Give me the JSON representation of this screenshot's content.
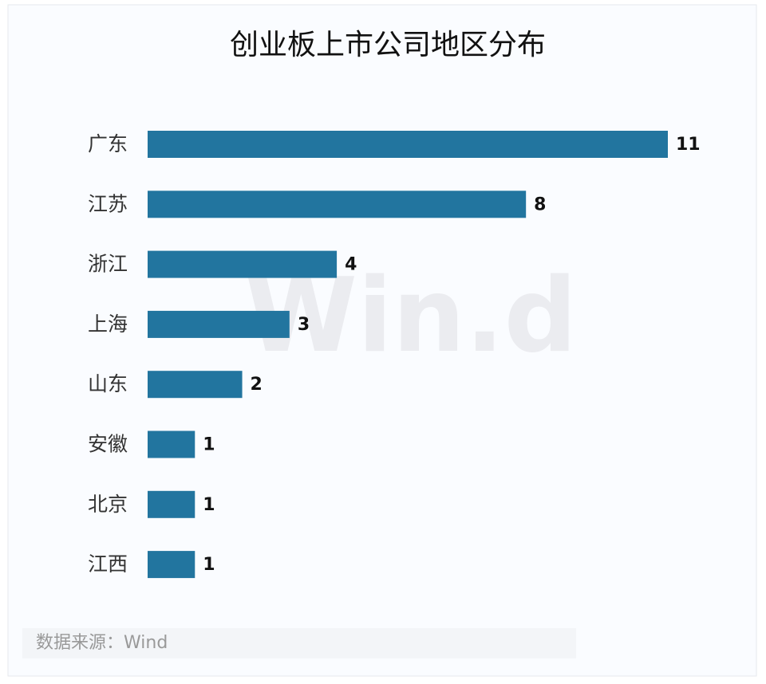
{
  "chart_data": {
    "type": "bar",
    "orientation": "horizontal",
    "title": "创业板上市公司地区分布",
    "categories": [
      "广东",
      "江苏",
      "浙江",
      "上海",
      "山东",
      "安徽",
      "北京",
      "江西"
    ],
    "values": [
      11,
      8,
      4,
      3,
      2,
      1,
      1,
      1
    ],
    "color": "#22759f",
    "source": "数据来源：Wind",
    "watermark": "Win.d"
  }
}
